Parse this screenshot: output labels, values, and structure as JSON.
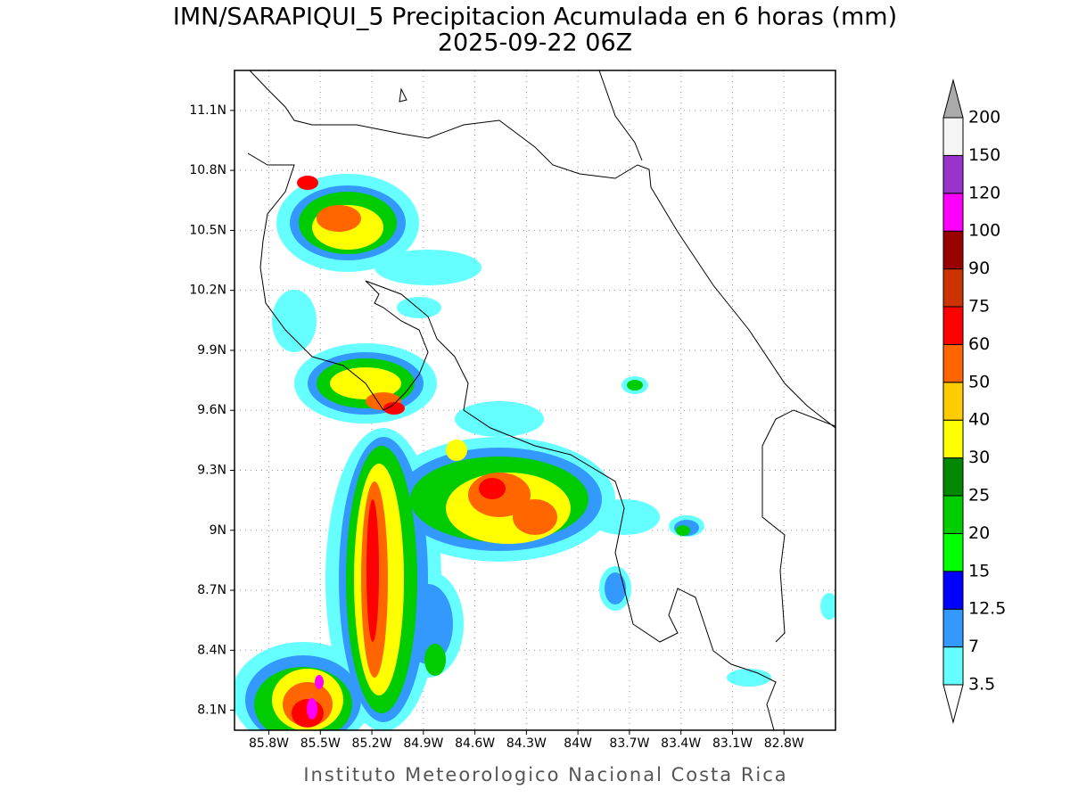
{
  "header": {
    "title": "IMN/SARAPIQUI_5 Precipitacion Acumulada en 6 horas (mm)",
    "subtitle": "2025-09-22 06Z"
  },
  "map": {
    "lat_range": [
      8.0,
      11.3
    ],
    "lon_range": [
      -86.0,
      -82.5
    ],
    "lat_ticks": [
      {
        "value": 8.1,
        "label": "8.1N"
      },
      {
        "value": 8.4,
        "label": "8.4N"
      },
      {
        "value": 8.7,
        "label": "8.7N"
      },
      {
        "value": 9.0,
        "label": "9N"
      },
      {
        "value": 9.3,
        "label": "9.3N"
      },
      {
        "value": 9.6,
        "label": "9.6N"
      },
      {
        "value": 9.9,
        "label": "9.9N"
      },
      {
        "value": 10.2,
        "label": "10.2N"
      },
      {
        "value": 10.5,
        "label": "10.5N"
      },
      {
        "value": 10.8,
        "label": "10.8N"
      },
      {
        "value": 11.1,
        "label": "11.1N"
      }
    ],
    "lon_ticks": [
      {
        "value": -85.8,
        "label": "85.8W"
      },
      {
        "value": -85.5,
        "label": "85.5W"
      },
      {
        "value": -85.2,
        "label": "85.2W"
      },
      {
        "value": -84.9,
        "label": "84.9W"
      },
      {
        "value": -84.6,
        "label": "84.6W"
      },
      {
        "value": -84.3,
        "label": "84.3W"
      },
      {
        "value": -84.0,
        "label": "84W"
      },
      {
        "value": -83.7,
        "label": "83.7W"
      },
      {
        "value": -83.4,
        "label": "83.4W"
      },
      {
        "value": -83.1,
        "label": "83.1W"
      },
      {
        "value": -82.8,
        "label": "82.8W"
      }
    ],
    "grid": true
  },
  "colorbar": {
    "levels": [
      3.5,
      7,
      12.5,
      15,
      20,
      25,
      30,
      40,
      50,
      60,
      75,
      90,
      100,
      120,
      150,
      200
    ],
    "colors": [
      "#66ffff",
      "#3399ff",
      "#0000ff",
      "#00ff00",
      "#00cc00",
      "#008800",
      "#ffff00",
      "#ffcc00",
      "#ff6600",
      "#ff0000",
      "#cc3300",
      "#990000",
      "#ff00ff",
      "#9933cc",
      "#f5f5f5"
    ],
    "over_color": "#aaaaaa",
    "under_color": "#ffffff"
  },
  "footer": "Instituto Meteorologico Nacional Costa Rica"
}
